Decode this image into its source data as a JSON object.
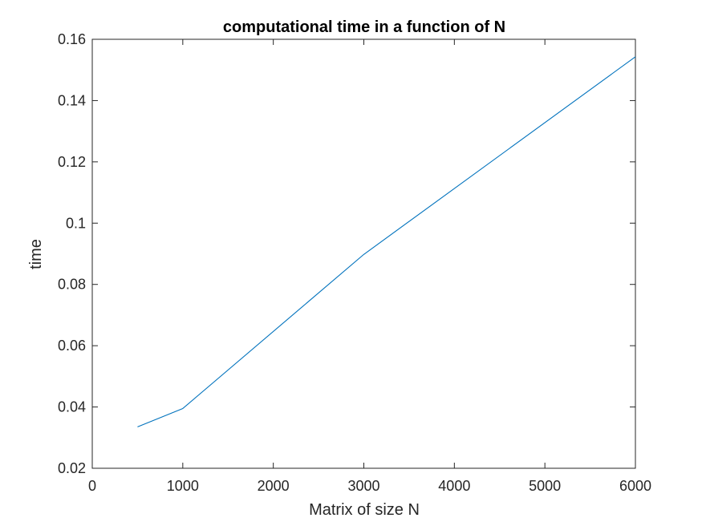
{
  "chart_data": {
    "type": "line",
    "title": "computational time in a function of N",
    "xlabel": "Matrix of size N",
    "ylabel": "time",
    "xlim": [
      0,
      6000
    ],
    "ylim": [
      0.02,
      0.16
    ],
    "xticks": [
      0,
      1000,
      2000,
      3000,
      4000,
      5000,
      6000
    ],
    "xtick_labels": [
      "0",
      "1000",
      "2000",
      "3000",
      "4000",
      "5000",
      "6000"
    ],
    "yticks": [
      0.02,
      0.04,
      0.06,
      0.08,
      0.1,
      0.12,
      0.14,
      0.16
    ],
    "ytick_labels": [
      "0.02",
      "0.04",
      "0.06",
      "0.08",
      "0.1",
      "0.12",
      "0.14",
      "0.16"
    ],
    "grid": false,
    "box": true,
    "series": [
      {
        "x": [
          500,
          1000,
          3000,
          6000
        ],
        "y": [
          0.0335,
          0.0395,
          0.0898,
          0.1543
        ],
        "color": "#0072BD"
      }
    ]
  }
}
